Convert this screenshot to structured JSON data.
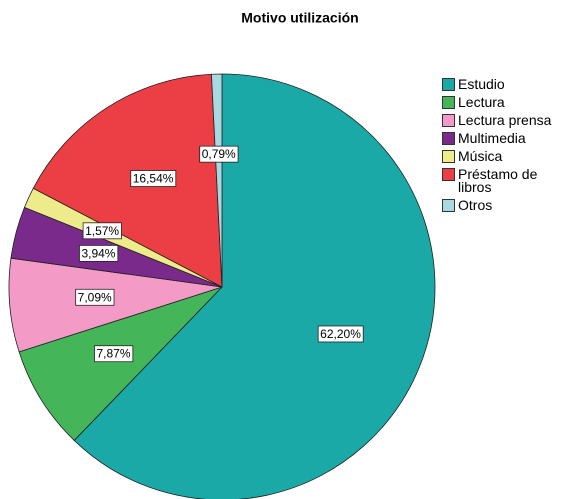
{
  "chart_data": {
    "type": "pie",
    "title": "Motivo utilización",
    "categories": [
      "Estudio",
      "Lectura",
      "Lectura prensa",
      "Multimedia",
      "Música",
      "Préstamo de libros",
      "Otros"
    ],
    "values": [
      62.2,
      7.87,
      7.09,
      3.94,
      1.57,
      16.54,
      0.79
    ],
    "value_labels": [
      "62,20%",
      "7,87%",
      "7,09%",
      "3,94%",
      "1,57%",
      "16,54%",
      "0,79%"
    ],
    "colors": [
      "#1aa9a7",
      "#45b55a",
      "#f49ac6",
      "#7a2a8a",
      "#eeec8a",
      "#ec3f45",
      "#a8d8e0"
    ],
    "legend": "right"
  }
}
